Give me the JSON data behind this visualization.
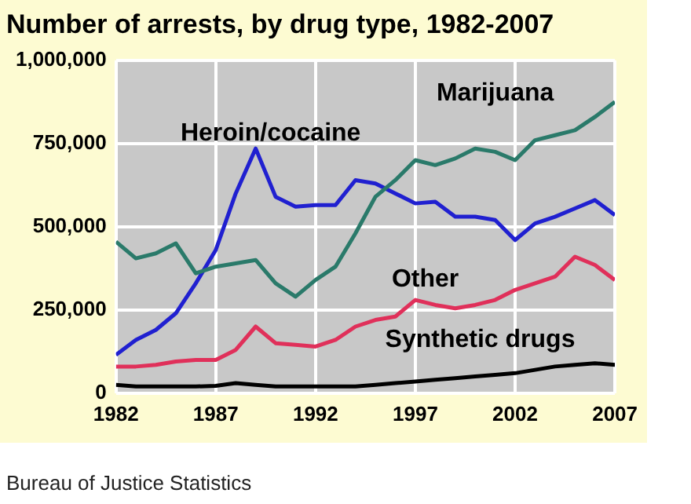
{
  "chart_data": {
    "type": "line",
    "title": "Number of arrests, by drug type, 1982-2007",
    "x": [
      1982,
      1983,
      1984,
      1985,
      1986,
      1987,
      1988,
      1989,
      1990,
      1991,
      1992,
      1993,
      1994,
      1995,
      1996,
      1997,
      1998,
      1999,
      2000,
      2001,
      2002,
      2003,
      2004,
      2005,
      2006,
      2007
    ],
    "series": [
      {
        "name": "Marijuana",
        "color": "#2a7a6a",
        "values": [
          455000,
          405000,
          420000,
          450000,
          360000,
          380000,
          390000,
          400000,
          330000,
          290000,
          340000,
          380000,
          480000,
          590000,
          640000,
          700000,
          685000,
          705000,
          735000,
          725000,
          700000,
          760000,
          775000,
          790000,
          830000,
          875000
        ]
      },
      {
        "name": "Heroin/cocaine",
        "color": "#2020d0",
        "values": [
          115000,
          160000,
          190000,
          240000,
          330000,
          430000,
          600000,
          735000,
          590000,
          560000,
          565000,
          565000,
          640000,
          630000,
          600000,
          570000,
          575000,
          530000,
          530000,
          520000,
          460000,
          510000,
          530000,
          555000,
          580000,
          535000
        ]
      },
      {
        "name": "Other",
        "color": "#e0305a",
        "values": [
          80000,
          80000,
          85000,
          95000,
          100000,
          100000,
          130000,
          200000,
          150000,
          145000,
          140000,
          160000,
          200000,
          220000,
          230000,
          280000,
          265000,
          255000,
          265000,
          280000,
          310000,
          330000,
          350000,
          410000,
          385000,
          340000
        ]
      },
      {
        "name": "Synthetic drugs",
        "color": "#000000",
        "values": [
          25000,
          20000,
          20000,
          20000,
          20000,
          22000,
          30000,
          25000,
          20000,
          20000,
          20000,
          20000,
          20000,
          25000,
          30000,
          35000,
          40000,
          45000,
          50000,
          55000,
          60000,
          70000,
          80000,
          85000,
          90000,
          85000
        ]
      }
    ],
    "xlim": [
      1982,
      2007
    ],
    "xticks": [
      1982,
      1987,
      1992,
      1997,
      2002,
      2007
    ],
    "ylim": [
      0,
      1000000
    ],
    "yticks": [
      0,
      {
        "value": 250000,
        "label": "250,000"
      },
      {
        "value": 500000,
        "label": "500,000"
      },
      {
        "value": 750000,
        "label": "750,000"
      },
      {
        "value": 1000000,
        "label": "1,000,000"
      }
    ],
    "grid": true,
    "legend": false,
    "marker": "none",
    "line_style": "solid",
    "annotations": [
      "Bureau of Justice Statistics"
    ]
  }
}
